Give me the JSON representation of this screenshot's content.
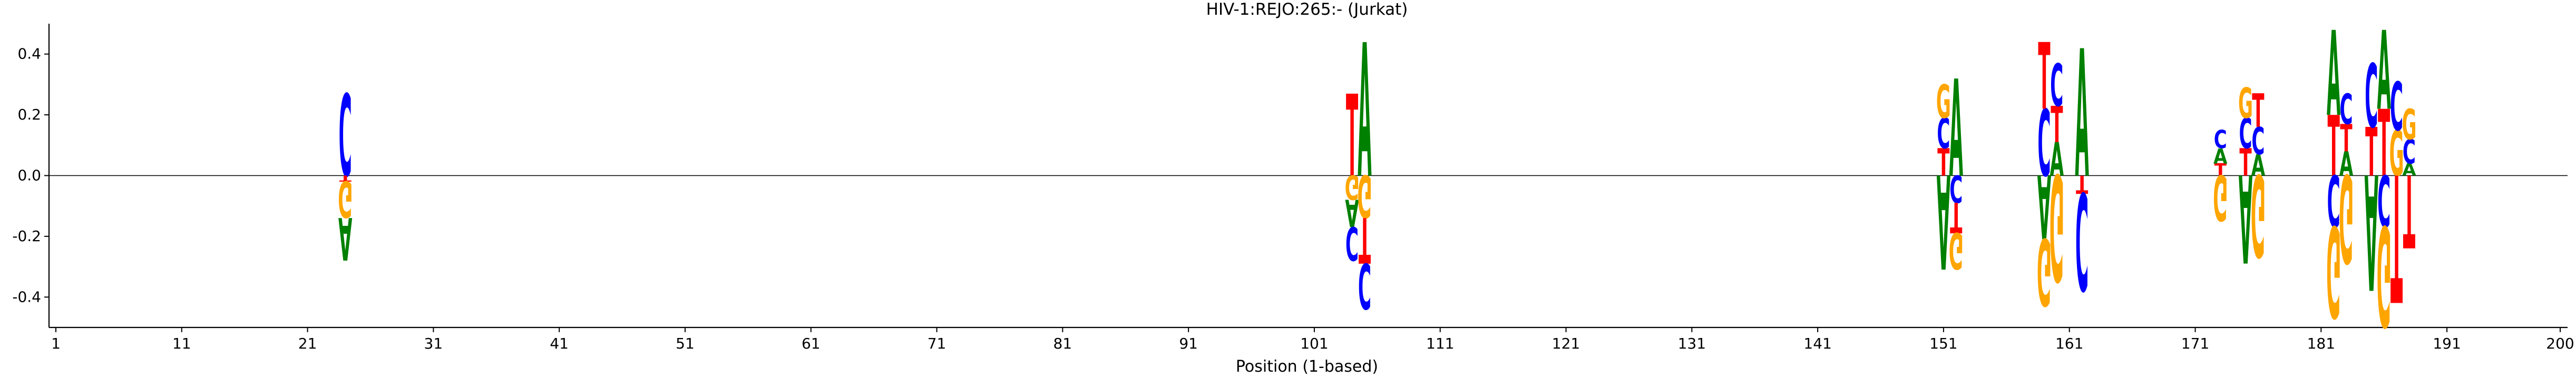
{
  "chart_data": {
    "type": "sequence-logo",
    "title": "HIV-1:REJO:265:-  (Jurkat)",
    "xlabel": "Position (1-based)",
    "ylabel": "",
    "xlim": [
      1,
      200
    ],
    "ylim": [
      -0.5,
      0.5
    ],
    "x_ticks": [
      1,
      11,
      21,
      31,
      41,
      51,
      61,
      71,
      81,
      91,
      101,
      111,
      121,
      131,
      141,
      151,
      161,
      171,
      181,
      191,
      200
    ],
    "x_tick_labels": [
      "1",
      "11",
      "21",
      "31",
      "41",
      "51",
      "61",
      "71",
      "81",
      "91",
      "101",
      "111",
      "121",
      "131",
      "141",
      "151",
      "161",
      "171",
      "181",
      "191",
      "200"
    ],
    "y_ticks": [
      0.4,
      0.2,
      0.0,
      -0.2,
      -0.4
    ],
    "y_tick_labels": [
      "0.4",
      "0.2",
      "0.0",
      "-0.2",
      "-0.4"
    ],
    "baseline": 0,
    "grid": false,
    "colors": {
      "A": "#008000",
      "C": "#0000ff",
      "G": "#ffa500",
      "T": "#ff0000"
    },
    "positions": [
      {
        "pos": 24,
        "letters": [
          {
            "base": "C",
            "value": 0.27
          },
          {
            "base": "T",
            "value": -0.02
          },
          {
            "base": "G",
            "value": -0.12
          },
          {
            "base": "A",
            "value": -0.14
          }
        ]
      },
      {
        "pos": 104,
        "letters": [
          {
            "base": "T",
            "value": 0.27
          },
          {
            "base": "G",
            "value": -0.08
          },
          {
            "base": "C",
            "value": -0.11
          },
          {
            "base": "A",
            "value": -0.09
          }
        ]
      },
      {
        "pos": 105,
        "letters": [
          {
            "base": "A",
            "value": 0.44
          },
          {
            "base": "T",
            "value": -0.15
          },
          {
            "base": "G",
            "value": -0.14
          },
          {
            "base": "C",
            "value": -0.15
          }
        ]
      },
      {
        "pos": 151,
        "letters": [
          {
            "base": "C",
            "value": 0.1
          },
          {
            "base": "G",
            "value": 0.11
          },
          {
            "base": "T",
            "value": 0.09
          },
          {
            "base": "A",
            "value": -0.31
          }
        ]
      },
      {
        "pos": 152,
        "letters": [
          {
            "base": "A",
            "value": 0.32
          },
          {
            "base": "T",
            "value": -0.1
          },
          {
            "base": "G",
            "value": -0.12
          },
          {
            "base": "C",
            "value": -0.09
          }
        ]
      },
      {
        "pos": 159,
        "letters": [
          {
            "base": "C",
            "value": 0.22
          },
          {
            "base": "T",
            "value": 0.22
          },
          {
            "base": "A",
            "value": -0.21
          },
          {
            "base": "G",
            "value": -0.22
          }
        ]
      },
      {
        "pos": 160,
        "letters": [
          {
            "base": "A",
            "value": 0.11
          },
          {
            "base": "C",
            "value": 0.14
          },
          {
            "base": "T",
            "value": 0.12
          },
          {
            "base": "G",
            "value": -0.35
          }
        ]
      },
      {
        "pos": 162,
        "letters": [
          {
            "base": "A",
            "value": 0.42
          },
          {
            "base": "T",
            "value": -0.06
          },
          {
            "base": "C",
            "value": -0.32
          }
        ]
      },
      {
        "pos": 173,
        "letters": [
          {
            "base": "A",
            "value": 0.05
          },
          {
            "base": "C",
            "value": 0.06
          },
          {
            "base": "T",
            "value": 0.04
          },
          {
            "base": "G",
            "value": -0.15
          }
        ]
      },
      {
        "pos": 175,
        "letters": [
          {
            "base": "C",
            "value": 0.1
          },
          {
            "base": "G",
            "value": 0.1
          },
          {
            "base": "T",
            "value": 0.09
          },
          {
            "base": "A",
            "value": -0.29
          }
        ]
      },
      {
        "pos": 176,
        "letters": [
          {
            "base": "A",
            "value": 0.07
          },
          {
            "base": "C",
            "value": 0.09
          },
          {
            "base": "T",
            "value": 0.11
          },
          {
            "base": "G",
            "value": -0.27
          }
        ]
      },
      {
        "pos": 182,
        "letters": [
          {
            "base": "A",
            "value": 0.28
          },
          {
            "base": "T",
            "value": 0.2
          },
          {
            "base": "C",
            "value": -0.17
          },
          {
            "base": "G",
            "value": -0.3
          }
        ]
      },
      {
        "pos": 183,
        "letters": [
          {
            "base": "C",
            "value": 0.1
          },
          {
            "base": "A",
            "value": 0.08
          },
          {
            "base": "T",
            "value": 0.09
          },
          {
            "base": "G",
            "value": -0.29
          }
        ]
      },
      {
        "pos": 185,
        "letters": [
          {
            "base": "C",
            "value": 0.21
          },
          {
            "base": "T",
            "value": 0.16
          },
          {
            "base": "A",
            "value": -0.38
          }
        ]
      },
      {
        "pos": 186,
        "letters": [
          {
            "base": "A",
            "value": 0.26
          },
          {
            "base": "T",
            "value": 0.22
          },
          {
            "base": "C",
            "value": -0.17
          },
          {
            "base": "G",
            "value": -0.33
          }
        ]
      },
      {
        "pos": 187,
        "letters": [
          {
            "base": "C",
            "value": 0.16
          },
          {
            "base": "G",
            "value": 0.15
          },
          {
            "base": "T",
            "value": -0.42
          }
        ]
      },
      {
        "pos": 188,
        "letters": [
          {
            "base": "A",
            "value": 0.04
          },
          {
            "base": "C",
            "value": 0.08
          },
          {
            "base": "G",
            "value": 0.1
          },
          {
            "base": "T",
            "value": -0.24
          }
        ]
      }
    ]
  }
}
